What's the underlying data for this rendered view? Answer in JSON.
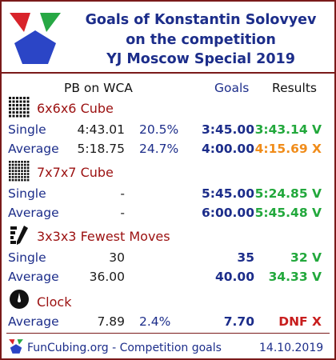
{
  "title": {
    "line1": "Goals of Konstantin Solovyev",
    "line2": "on the competition",
    "line3": "YJ Moscow Special 2019"
  },
  "columns": {
    "pb": "PB on WCA",
    "goals": "Goals",
    "results": "Results"
  },
  "events": [
    {
      "name": "6x6x6 Cube",
      "icon": "cube-6x6-icon",
      "rows": [
        {
          "label": "Single",
          "pb": "4:43.01",
          "pct": "20.5%",
          "goal": "3:45.00",
          "result": "3:43.14 V"
        },
        {
          "label": "Average",
          "pb": "5:18.75",
          "pct": "24.7%",
          "goal": "4:00.00",
          "result": "4:15.69 X"
        }
      ]
    },
    {
      "name": "7x7x7 Cube",
      "icon": "cube-7x7-icon",
      "rows": [
        {
          "label": "Single",
          "pb": "-",
          "pct": "",
          "goal": "5:45.00",
          "result": "5:24.85 V"
        },
        {
          "label": "Average",
          "pb": "-",
          "pct": "",
          "goal": "6:00.00",
          "result": "5:45.48 V"
        }
      ]
    },
    {
      "name": "3x3x3 Fewest Moves",
      "icon": "pencil-fmc-icon",
      "rows": [
        {
          "label": "Single",
          "pb": "30",
          "pct": "",
          "goal": "35",
          "result": "32 V"
        },
        {
          "label": "Average",
          "pb": "36.00",
          "pct": "",
          "goal": "40.00",
          "result": "34.33 V"
        }
      ]
    },
    {
      "name": "Clock",
      "icon": "clock-icon",
      "rows": [
        {
          "label": "Average",
          "pb": "7.89",
          "pct": "2.4%",
          "goal": "7.70",
          "result": "DNF X"
        }
      ]
    }
  ],
  "footer": {
    "site": "FunCubing.org - Competition goals",
    "date": "14.10.2019"
  },
  "colors": {
    "brand": "#1c2d8a",
    "frame": "#7a1a1a",
    "success": "#22a83c",
    "miss": "#f08c1a",
    "dnf": "#c81e1e",
    "event": "#9b1010"
  }
}
